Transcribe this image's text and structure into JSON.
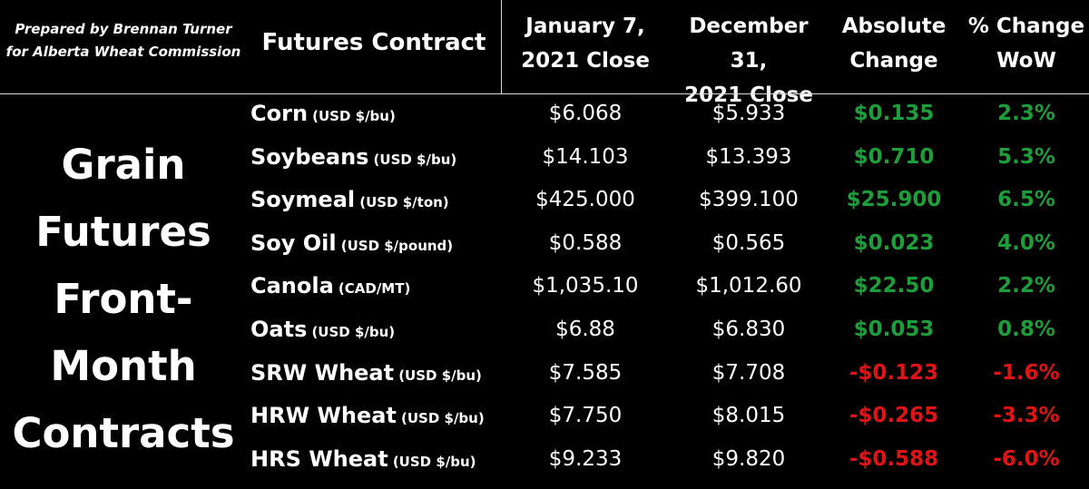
{
  "credit": {
    "line1": "Prepared by Brennan Turner",
    "line2": "for Alberta Wheat Commission"
  },
  "side_title": [
    "Grain",
    "Futures",
    "Front-",
    "Month",
    "Contracts"
  ],
  "headers": {
    "contract": "Futures Contract",
    "jan_line1": "January 7,",
    "jan_line2": "2021 Close",
    "dec_line1": "December 31,",
    "dec_line2": "2021 Close",
    "abs_line1": "Absolute",
    "abs_line2": "Change",
    "pct_line1": "% Change",
    "pct_line2": "WoW"
  },
  "colors": {
    "positive": "#1e9e3a",
    "negative": "#e01414",
    "background": "#000000",
    "text": "#ffffff"
  },
  "rows": [
    {
      "name": "Corn",
      "unit": "(USD $/bu)",
      "jan": "$6.068",
      "dec": "$5.933",
      "abs": "$0.135",
      "pct": "2.3%",
      "sign": "pos"
    },
    {
      "name": "Soybeans",
      "unit": "(USD $/bu)",
      "jan": "$14.103",
      "dec": "$13.393",
      "abs": "$0.710",
      "pct": "5.3%",
      "sign": "pos"
    },
    {
      "name": "Soymeal",
      "unit": "(USD $/ton)",
      "jan": "$425.000",
      "dec": "$399.100",
      "abs": "$25.900",
      "pct": "6.5%",
      "sign": "pos"
    },
    {
      "name": "Soy Oil",
      "unit": "(USD $/pound)",
      "jan": "$0.588",
      "dec": "$0.565",
      "abs": "$0.023",
      "pct": "4.0%",
      "sign": "pos"
    },
    {
      "name": "Canola",
      "unit": "(CAD/MT)",
      "jan": "$1,035.10",
      "dec": "$1,012.60",
      "abs": "$22.50",
      "pct": "2.2%",
      "sign": "pos"
    },
    {
      "name": "Oats",
      "unit": "(USD $/bu)",
      "jan": "$6.88",
      "dec": "$6.830",
      "abs": "$0.053",
      "pct": "0.8%",
      "sign": "pos"
    },
    {
      "name": "SRW Wheat",
      "unit": "(USD $/bu)",
      "jan": "$7.585",
      "dec": "$7.708",
      "abs": "-$0.123",
      "pct": "-1.6%",
      "sign": "neg"
    },
    {
      "name": "HRW Wheat",
      "unit": "(USD $/bu)",
      "jan": "$7.750",
      "dec": "$8.015",
      "abs": "-$0.265",
      "pct": "-3.3%",
      "sign": "neg"
    },
    {
      "name": "HRS Wheat",
      "unit": "(USD $/bu)",
      "jan": "$9.233",
      "dec": "$9.820",
      "abs": "-$0.588",
      "pct": "-6.0%",
      "sign": "neg"
    }
  ]
}
